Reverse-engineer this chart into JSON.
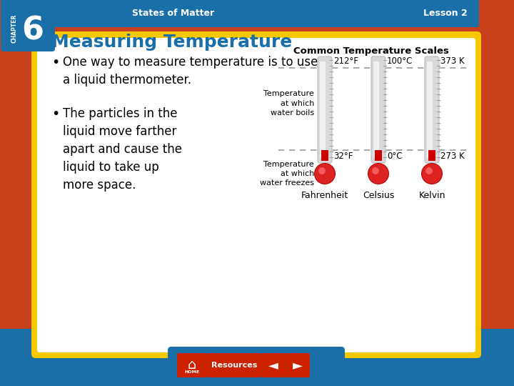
{
  "bg_outer": "#c8401a",
  "bg_yellow": "#f5c800",
  "bg_blue_bottom": "#1a6fa8",
  "bg_inner": "#ffffff",
  "header_bg": "#1a6fa8",
  "header_text_color": "#ffffff",
  "chapter_bg": "#1a6fa8",
  "chapter_number": "6",
  "chapter_label": "CHAPTER",
  "header_title": "States of Matter",
  "header_lesson": "Lesson 2",
  "slide_title": "Measuring Temperature",
  "slide_title_color": "#1a6fa8",
  "bullet1": "One way to measure temperature is to use\na liquid thermometer.",
  "bullet2": "The particles in the\nliquid move farther\napart and cause the\nliquid to take up\nmore space.",
  "diagram_title": "Common Temperature Scales",
  "therm_boil_label": "Temperature\nat which\nwater boils",
  "therm_freeze_label": "Temperature\nat which\nwater freezes",
  "boil_values": [
    "212°F",
    "100°C",
    "373 K"
  ],
  "freeze_values": [
    "32°F",
    "0°C",
    "273 K"
  ],
  "scale_labels": [
    "Fahrenheit",
    "Celsius",
    "Kelvin"
  ],
  "therm_color": "#cc0000",
  "dashed_line_color": "#999999",
  "bottom_bar_color": "#1a6fa8",
  "nav_red": "#cc2200",
  "nav_red2": "#c03010"
}
